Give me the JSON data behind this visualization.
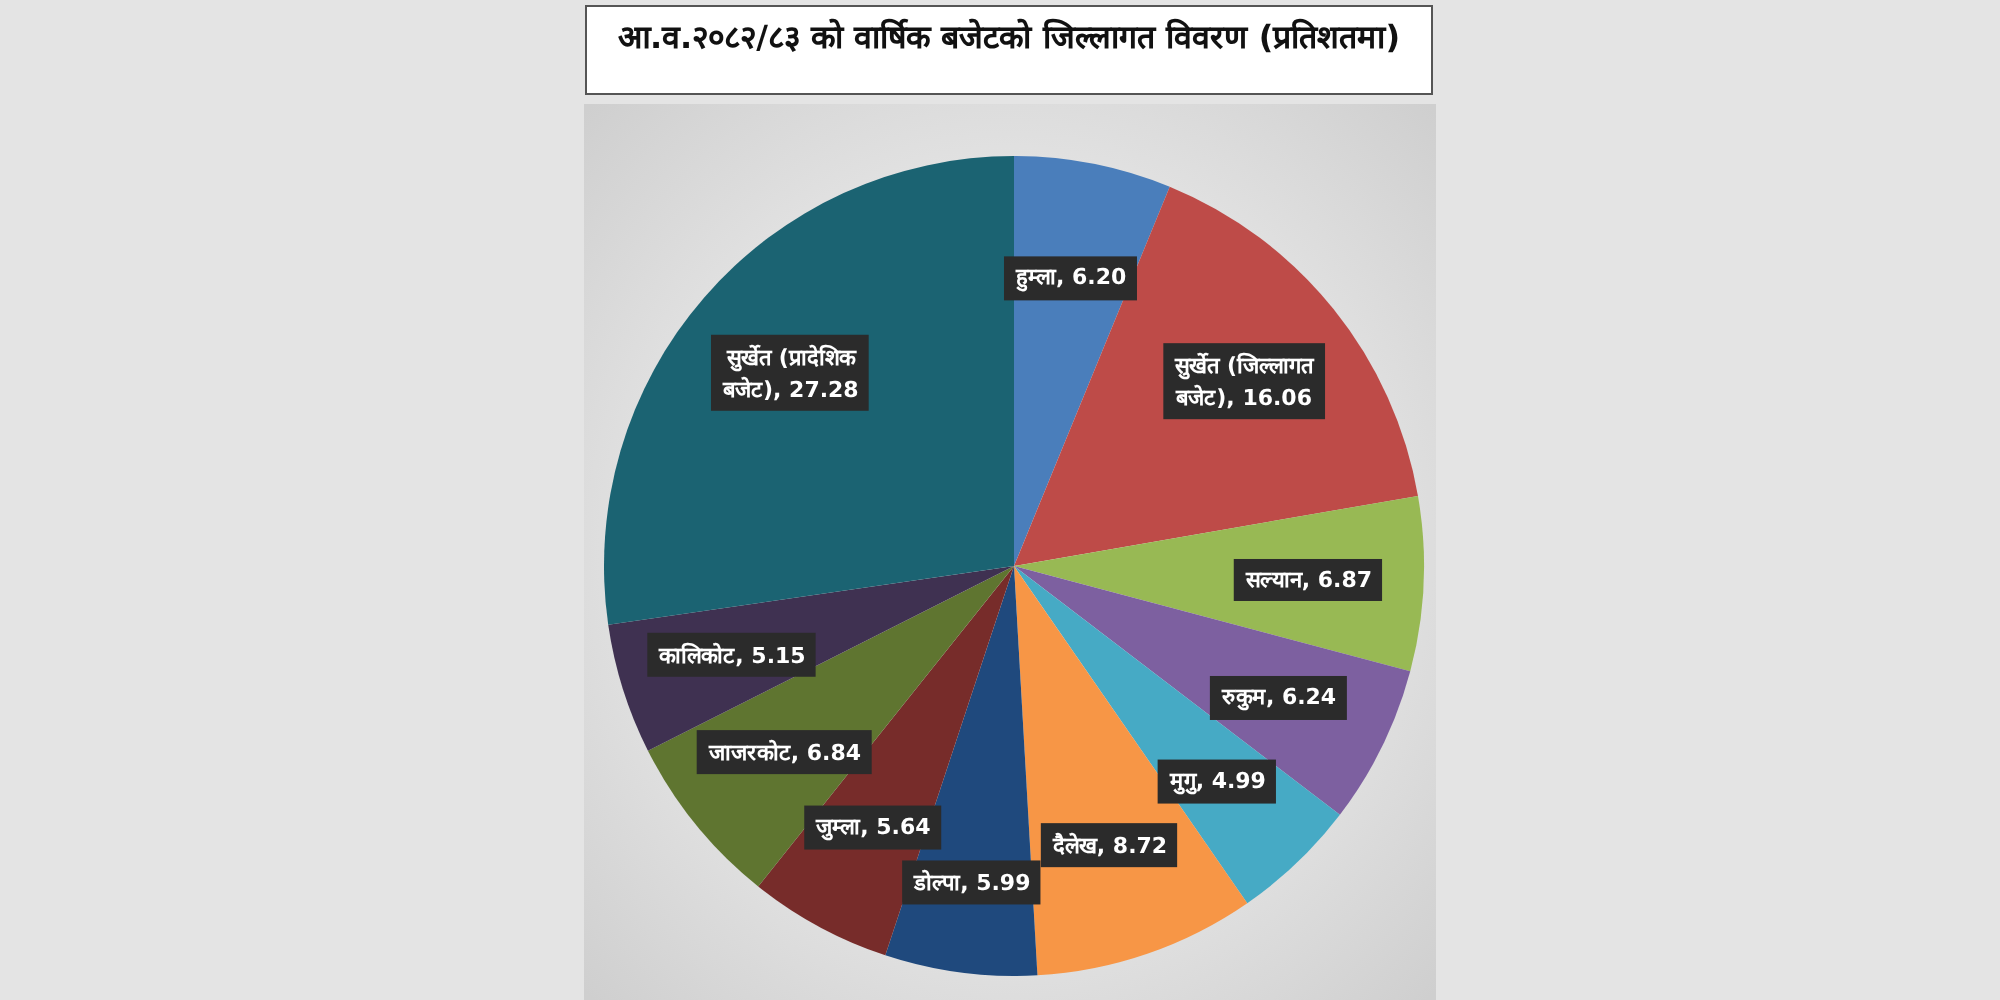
{
  "chart_data": {
    "type": "pie",
    "title": "आ.व.२०८२/८३ को वार्षिक बजेटको जिल्लागत विवरण (प्रतिशतमा)",
    "categories": [
      "हुम्ला",
      "सुर्खेत (जिल्लागत बजेट)",
      "सल्यान",
      "रुकुम",
      "मुगु",
      "दैलेख",
      "डोल्पा",
      "जुम्ला",
      "जाजरकोट",
      "कालिकोट",
      "सुर्खेत (प्रादेशिक बजेट)"
    ],
    "values": [
      6.2,
      16.06,
      6.87,
      6.24,
      4.99,
      8.72,
      5.99,
      5.64,
      6.84,
      5.15,
      27.28
    ],
    "value_labels": [
      "6.20",
      "16.06",
      "6.87",
      "6.24",
      "4.99",
      "8.72",
      "5.99",
      "5.64",
      "6.84",
      "5.15",
      "27.28"
    ],
    "colors": [
      "#4a7ebb",
      "#be4b48",
      "#98b954",
      "#7d60a0",
      "#46aac5",
      "#f79646",
      "#1f497d",
      "#772c2a",
      "#5f7530",
      "#3f3151",
      "#1b6372"
    ]
  }
}
